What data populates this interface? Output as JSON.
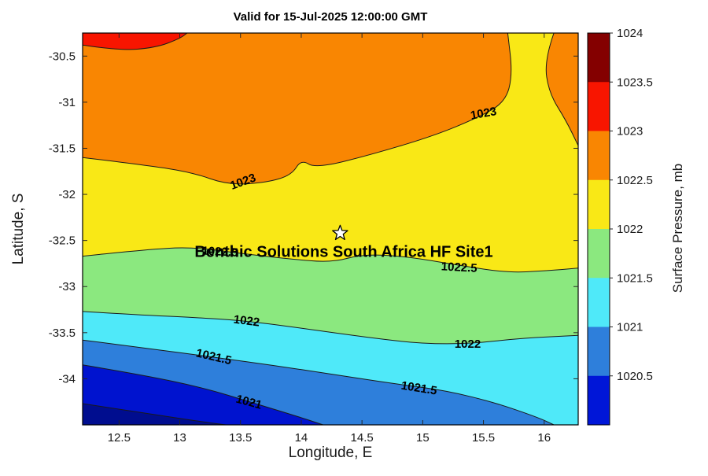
{
  "chart_data": {
    "type": "filled_contour",
    "title": "Valid for 15-Jul-2025 12:00:00 GMT",
    "xlabel": "Longitude, E",
    "ylabel": "Latitude, S",
    "xlim": [
      12.2,
      16.28
    ],
    "ylim": [
      -34.5,
      -30.25
    ],
    "xticks": [
      "12.5",
      "13",
      "13.5",
      "14",
      "14.5",
      "15",
      "15.5",
      "16"
    ],
    "yticks": [
      "-30.5",
      "-31",
      "-31.5",
      "-32",
      "-32.5",
      "-33",
      "-33.5",
      "-34"
    ],
    "colorbar": {
      "label": "Surface Pressure, mb",
      "ticks": [
        "1024",
        "1023.5",
        "1023",
        "1022.5",
        "1022",
        "1021.5",
        "1021",
        "1020.5"
      ],
      "band_colors": [
        "#840000",
        "#F81500",
        "#F98602",
        "#F9E816",
        "#8BE87F",
        "#4FE9F9",
        "#2E7FDB",
        "#0016D8"
      ]
    },
    "base_color": "#F98602",
    "line_color": "#1A1A1A",
    "contours": [
      {
        "level": 1023,
        "fill": "#F9E816",
        "points": [
          [
            12.2,
            -31.6
          ],
          [
            12.7,
            -31.68
          ],
          [
            13.1,
            -31.76
          ],
          [
            13.4,
            -31.9
          ],
          [
            13.72,
            -31.87
          ],
          [
            13.92,
            -31.79
          ],
          [
            14.0,
            -31.62
          ],
          [
            14.12,
            -31.72
          ],
          [
            14.6,
            -31.56
          ],
          [
            15.1,
            -31.36
          ],
          [
            15.45,
            -31.17
          ],
          [
            15.68,
            -31.0
          ],
          [
            15.74,
            -30.7
          ],
          [
            15.7,
            -30.25
          ]
        ],
        "close": [
          [
            16.28,
            -30.25
          ],
          [
            16.28,
            -34.5
          ],
          [
            12.2,
            -34.5
          ]
        ]
      },
      {
        "level": 1022.5,
        "fill": "#8BE87F",
        "points": [
          [
            12.2,
            -32.67
          ],
          [
            12.7,
            -32.6
          ],
          [
            13.1,
            -32.57
          ],
          [
            13.5,
            -32.64
          ],
          [
            13.9,
            -32.7
          ],
          [
            14.25,
            -32.74
          ],
          [
            14.5,
            -32.65
          ],
          [
            14.85,
            -32.67
          ],
          [
            15.3,
            -32.77
          ],
          [
            15.7,
            -32.85
          ],
          [
            16.0,
            -32.83
          ],
          [
            16.28,
            -32.8
          ]
        ],
        "close": [
          [
            16.28,
            -34.5
          ],
          [
            12.2,
            -34.5
          ]
        ]
      },
      {
        "level": 1022,
        "fill": "#4FE9F9",
        "points": [
          [
            12.2,
            -33.27
          ],
          [
            12.7,
            -33.31
          ],
          [
            13.2,
            -33.34
          ],
          [
            13.6,
            -33.38
          ],
          [
            14.1,
            -33.47
          ],
          [
            14.6,
            -33.56
          ],
          [
            15.0,
            -33.62
          ],
          [
            15.4,
            -33.62
          ],
          [
            15.8,
            -33.56
          ],
          [
            16.28,
            -33.53
          ]
        ],
        "close": [
          [
            16.28,
            -34.5
          ],
          [
            12.2,
            -34.5
          ]
        ]
      },
      {
        "level": 1021.5,
        "fill": "#2E7FDB",
        "points": [
          [
            12.2,
            -33.58
          ],
          [
            12.8,
            -33.68
          ],
          [
            13.3,
            -33.77
          ],
          [
            13.8,
            -33.86
          ],
          [
            14.3,
            -33.96
          ],
          [
            14.8,
            -34.06
          ],
          [
            15.2,
            -34.13
          ],
          [
            15.6,
            -34.26
          ],
          [
            15.95,
            -34.42
          ],
          [
            16.08,
            -34.5
          ]
        ],
        "close": [
          [
            12.2,
            -34.5
          ]
        ]
      },
      {
        "level": 1021,
        "fill": "#0013CF",
        "points": [
          [
            12.2,
            -33.85
          ],
          [
            12.7,
            -33.96
          ],
          [
            13.2,
            -34.1
          ],
          [
            13.6,
            -34.26
          ],
          [
            13.95,
            -34.4
          ],
          [
            14.18,
            -34.5
          ]
        ],
        "close": [
          [
            12.2,
            -34.5
          ]
        ]
      },
      {
        "level": 1020.5,
        "fill": "#000D8F",
        "points": [
          [
            12.2,
            -34.27
          ],
          [
            12.75,
            -34.38
          ],
          [
            13.15,
            -34.46
          ],
          [
            13.38,
            -34.5
          ]
        ],
        "close": [
          [
            12.2,
            -34.5
          ]
        ]
      },
      {
        "level": 1023.5,
        "fill": "#F81500",
        "points": [
          [
            12.2,
            -30.38
          ],
          [
            12.5,
            -30.44
          ],
          [
            12.8,
            -30.41
          ],
          [
            13.0,
            -30.31
          ],
          [
            13.06,
            -30.25
          ]
        ],
        "close": [
          [
            12.2,
            -30.25
          ]
        ]
      },
      {
        "level": 1023,
        "fill": "#F98602",
        "points": [
          [
            16.08,
            -30.25
          ],
          [
            16.0,
            -30.55
          ],
          [
            16.04,
            -30.9
          ],
          [
            16.18,
            -31.2
          ],
          [
            16.28,
            -31.47
          ]
        ],
        "close": [
          [
            16.28,
            -30.25
          ]
        ]
      }
    ],
    "contour_labels": [
      {
        "text": "1023",
        "lon": 13.52,
        "lat": -31.86,
        "rot": -20
      },
      {
        "text": "1023",
        "lon": 15.5,
        "lat": -31.12,
        "rot": -10
      },
      {
        "text": "1022.5",
        "lon": 13.33,
        "lat": -32.62,
        "rot": 3
      },
      {
        "text": "1022.5",
        "lon": 15.3,
        "lat": -32.79,
        "rot": 3
      },
      {
        "text": "1022",
        "lon": 13.55,
        "lat": -33.37,
        "rot": 7
      },
      {
        "text": "1022",
        "lon": 15.37,
        "lat": -33.62,
        "rot": 0
      },
      {
        "text": "1021.5",
        "lon": 13.28,
        "lat": -33.76,
        "rot": 13
      },
      {
        "text": "1021.5",
        "lon": 14.97,
        "lat": -34.1,
        "rot": 9
      },
      {
        "text": "1021",
        "lon": 13.57,
        "lat": -34.25,
        "rot": 15
      }
    ],
    "site_marker": {
      "lon": 14.32,
      "lat": -32.42,
      "label": "Benthic Solutions South Africa HF Site1",
      "label_lon": 14.35,
      "label_lat": -32.62,
      "marker": "star",
      "fill": "#FFFFFF",
      "stroke": "#000000"
    }
  }
}
